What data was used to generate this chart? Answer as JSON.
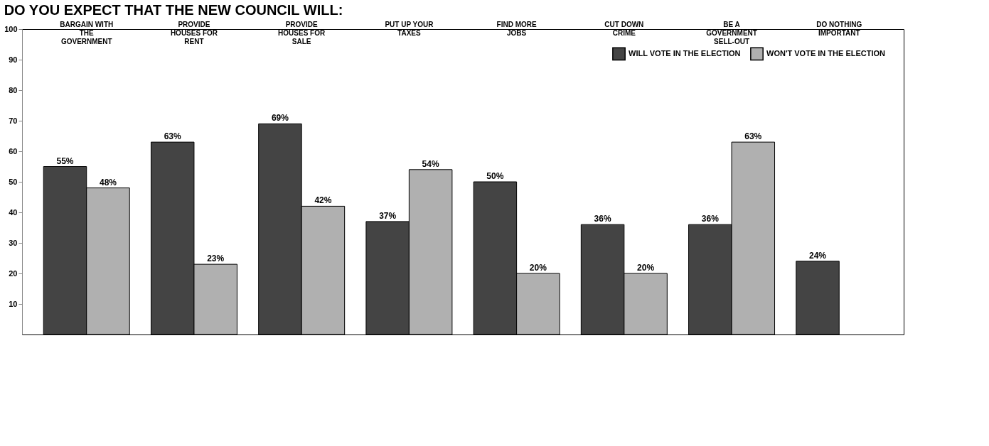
{
  "chart_data": {
    "type": "bar",
    "title": "DO YOU EXPECT THAT THE NEW COUNCIL WILL:",
    "categories": [
      "BARGAIN WITH THE GOVERNMENT",
      "PROVIDE HOUSES FOR RENT",
      "PROVIDE HOUSES FOR SALE",
      "PUT UP YOUR TAXES",
      "FIND MORE JOBS",
      "CUT DOWN CRIME",
      "BE A GOVERNMENT SELL-OUT",
      "DO NOTHING IMPORTANT"
    ],
    "series": [
      {
        "name": "WILL VOTE IN THE ELECTION",
        "color": "#444444",
        "values": [
          55,
          63,
          69,
          37,
          50,
          36,
          36,
          24
        ],
        "value_labels": [
          "55%",
          "63%",
          "69%",
          "37%",
          "50%",
          "36%",
          "36%",
          "24%"
        ]
      },
      {
        "name": "WON'T VOTE IN THE ELECTION",
        "color": "#b0b0b0",
        "values": [
          48,
          23,
          42,
          54,
          20,
          20,
          63,
          null
        ],
        "value_labels": [
          "48%",
          "23%",
          "42%",
          "54%",
          "20%",
          "20%",
          "63%",
          null
        ]
      }
    ],
    "ylim": [
      0,
      100
    ],
    "yticks": [
      10,
      20,
      30,
      40,
      50,
      60,
      70,
      80,
      90,
      100
    ],
    "grid": false,
    "legend": "top right"
  }
}
